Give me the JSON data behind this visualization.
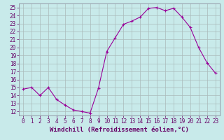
{
  "x": [
    0,
    1,
    2,
    3,
    4,
    5,
    6,
    7,
    8,
    9,
    10,
    11,
    12,
    13,
    14,
    15,
    16,
    17,
    18,
    19,
    20,
    21,
    22,
    23
  ],
  "y": [
    14.8,
    15.0,
    14.0,
    15.0,
    13.5,
    12.8,
    12.2,
    12.0,
    11.8,
    14.9,
    19.5,
    21.2,
    22.9,
    23.3,
    23.8,
    24.9,
    25.0,
    24.6,
    24.9,
    23.8,
    22.5,
    20.0,
    18.1,
    16.8
  ],
  "line_color": "#990099",
  "marker": "+",
  "marker_size": 3,
  "bg_color": "#c8eaea",
  "grid_color": "#aababa",
  "xlabel": "Windchill (Refroidissement éolien,°C)",
  "ylim": [
    11.5,
    25.5
  ],
  "xlim": [
    -0.5,
    23.5
  ],
  "yticks": [
    12,
    13,
    14,
    15,
    16,
    17,
    18,
    19,
    20,
    21,
    22,
    23,
    24,
    25
  ],
  "xticks": [
    0,
    1,
    2,
    3,
    4,
    5,
    6,
    7,
    8,
    9,
    10,
    11,
    12,
    13,
    14,
    15,
    16,
    17,
    18,
    19,
    20,
    21,
    22,
    23
  ],
  "tick_fontsize": 5.5,
  "label_fontsize": 6.5,
  "label_color": "#660066",
  "spine_color": "#888899"
}
